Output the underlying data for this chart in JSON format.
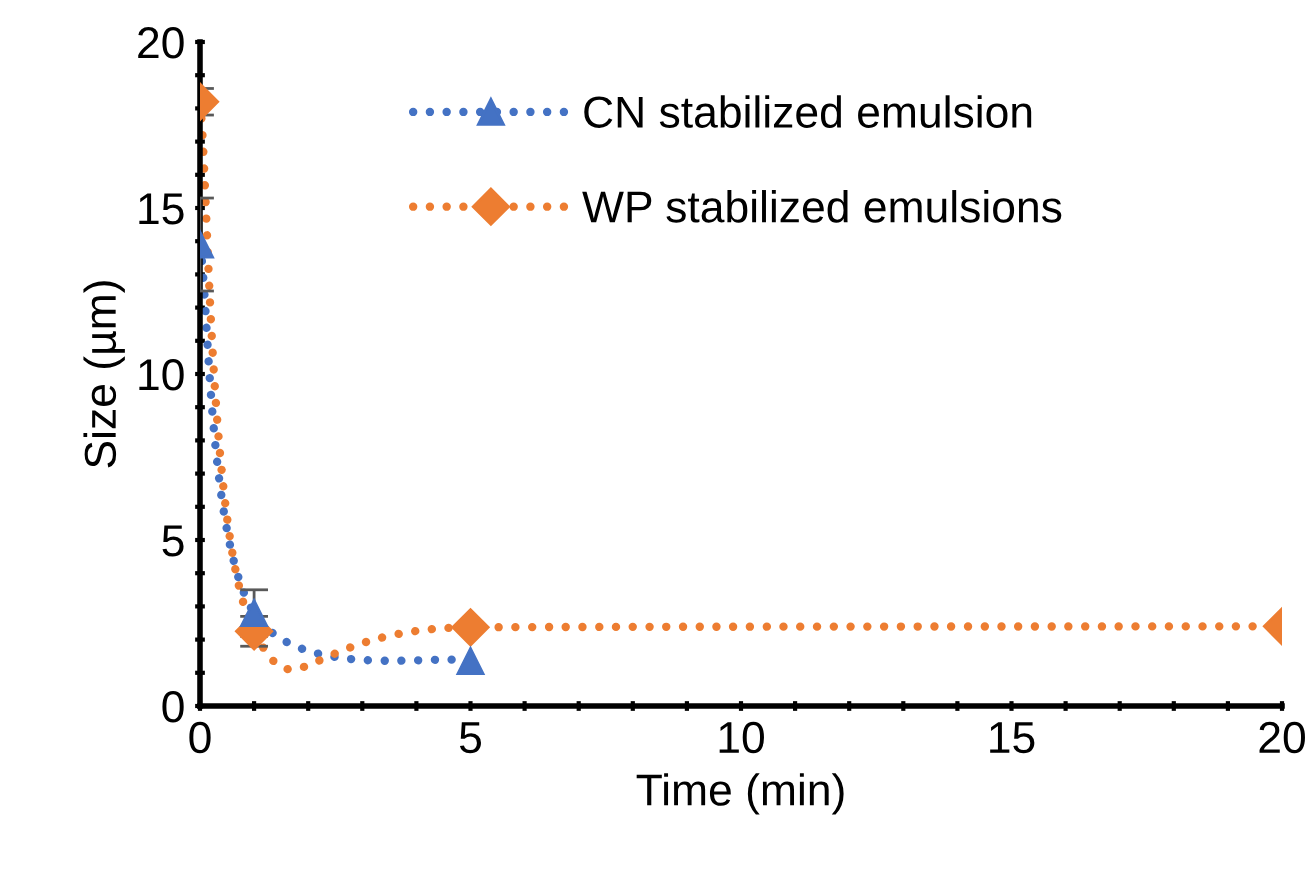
{
  "chart_data": {
    "type": "line",
    "xlabel": "Time (min)",
    "ylabel": "Size (µm)",
    "xlim": [
      0,
      20
    ],
    "ylim": [
      0,
      20
    ],
    "xticks": [
      0,
      {
        "value": 1,
        "label": null
      },
      {
        "value": 2,
        "label": null
      },
      {
        "value": 3,
        "label": null
      },
      {
        "value": 4,
        "label": null
      },
      5,
      {
        "value": 6,
        "label": null
      },
      {
        "value": 7,
        "label": null
      },
      {
        "value": 8,
        "label": null
      },
      {
        "value": 9,
        "label": null
      },
      10,
      {
        "value": 11,
        "label": null
      },
      {
        "value": 12,
        "label": null
      },
      {
        "value": 13,
        "label": null
      },
      {
        "value": 14,
        "label": null
      },
      15,
      {
        "value": 16,
        "label": null
      },
      {
        "value": 17,
        "label": null
      },
      {
        "value": 18,
        "label": null
      },
      {
        "value": 19,
        "label": null
      },
      20
    ],
    "yticks": [
      0,
      {
        "value": 1,
        "label": null
      },
      {
        "value": 2,
        "label": null
      },
      {
        "value": 3,
        "label": null
      },
      {
        "value": 4,
        "label": null
      },
      5,
      {
        "value": 6,
        "label": null
      },
      {
        "value": 7,
        "label": null
      },
      {
        "value": 8,
        "label": null
      },
      {
        "value": 9,
        "label": null
      },
      10,
      {
        "value": 11,
        "label": null
      },
      {
        "value": 12,
        "label": null
      },
      {
        "value": 13,
        "label": null
      },
      {
        "value": 14,
        "label": null
      },
      15,
      {
        "value": 16,
        "label": null
      },
      {
        "value": 17,
        "label": null
      },
      {
        "value": 18,
        "label": null
      },
      {
        "value": 19,
        "label": null
      },
      20
    ],
    "grid": false,
    "legend": "top right",
    "line_style": "dotted",
    "series": [
      {
        "name": "CN stabilized emulsion",
        "color": "#4472c4",
        "marker": "triangle",
        "x": [
          0,
          1,
          5
        ],
        "values": [
          13.9,
          2.8,
          1.35
        ],
        "errors": [
          1.4,
          0.7,
          null
        ]
      },
      {
        "name": "WP stabilized emulsions",
        "color": "#ed7d31",
        "marker": "diamond",
        "x": [
          0,
          1,
          5,
          20
        ],
        "values": [
          18.2,
          2.25,
          2.37,
          2.4
        ],
        "errors": [
          0.4,
          0.45,
          null,
          null
        ]
      }
    ]
  }
}
